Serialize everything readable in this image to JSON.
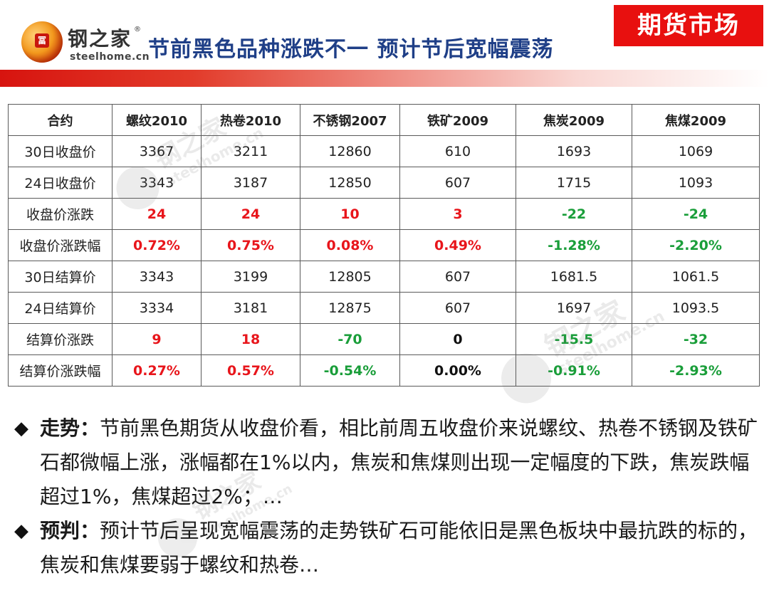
{
  "logo": {
    "name_cn": "钢之家",
    "domain": "steelhome.cn",
    "reg_mark": "®"
  },
  "title": "节前黑色品种涨跌不一 预计节后宽幅震荡",
  "badge": "期货市场",
  "table": {
    "headers": [
      "合约",
      "螺纹2010",
      "热卷2010",
      "不锈钢2007",
      "铁矿2009",
      "焦炭2009",
      "焦煤2009"
    ],
    "rows": [
      {
        "label": "30日收盘价",
        "values": [
          "3367",
          "3211",
          "12860",
          "610",
          "1693",
          "1069"
        ],
        "styles": [
          "",
          "",
          "",
          "",
          "",
          ""
        ]
      },
      {
        "label": "24日收盘价",
        "values": [
          "3343",
          "3187",
          "12850",
          "607",
          "1715",
          "1093"
        ],
        "styles": [
          "",
          "",
          "",
          "",
          "",
          ""
        ]
      },
      {
        "label": "收盘价涨跌",
        "values": [
          "24",
          "24",
          "10",
          "3",
          "-22",
          "-24"
        ],
        "styles": [
          "pos",
          "pos",
          "pos",
          "pos",
          "neg",
          "neg"
        ]
      },
      {
        "label": "收盘价涨跌幅",
        "values": [
          "0.72%",
          "0.75%",
          "0.08%",
          "0.49%",
          "-1.28%",
          "-2.20%"
        ],
        "styles": [
          "pos",
          "pos",
          "pos",
          "pos",
          "neg",
          "neg"
        ]
      },
      {
        "label": "30日结算价",
        "values": [
          "3343",
          "3199",
          "12805",
          "607",
          "1681.5",
          "1061.5"
        ],
        "styles": [
          "",
          "",
          "",
          "",
          "",
          ""
        ]
      },
      {
        "label": "24日结算价",
        "values": [
          "3334",
          "3181",
          "12875",
          "607",
          "1697",
          "1093.5"
        ],
        "styles": [
          "",
          "",
          "",
          "",
          "",
          ""
        ]
      },
      {
        "label": "结算价涨跌",
        "values": [
          "9",
          "18",
          "-70",
          "0",
          "-15.5",
          "-32"
        ],
        "styles": [
          "pos",
          "pos",
          "neg",
          "zero",
          "neg",
          "neg"
        ]
      },
      {
        "label": "结算价涨跌幅",
        "values": [
          "0.27%",
          "0.57%",
          "-0.54%",
          "0.00%",
          "-0.91%",
          "-2.93%"
        ],
        "styles": [
          "pos",
          "pos",
          "neg",
          "zero",
          "neg",
          "neg"
        ]
      }
    ]
  },
  "bullets": [
    {
      "label": "走势：",
      "text": "节前黑色期货从收盘价看，相比前周五收盘价来说螺纹、热卷不锈钢及铁矿石都微幅上涨，涨幅都在1%以内，焦炭和焦煤则出现一定幅度的下跌，焦炭跌幅超过1%，焦煤超过2%；…"
    },
    {
      "label": "预判：",
      "text": "预计节后呈现宽幅震荡的走势铁矿石可能依旧是黑色板块中最抗跌的标的，焦炭和焦煤要弱于螺纹和热卷…"
    }
  ],
  "colors": {
    "title": "#1f3f87",
    "badge_bg": "#e8100f",
    "up": "#e8151b",
    "down": "#1a9e3a"
  }
}
